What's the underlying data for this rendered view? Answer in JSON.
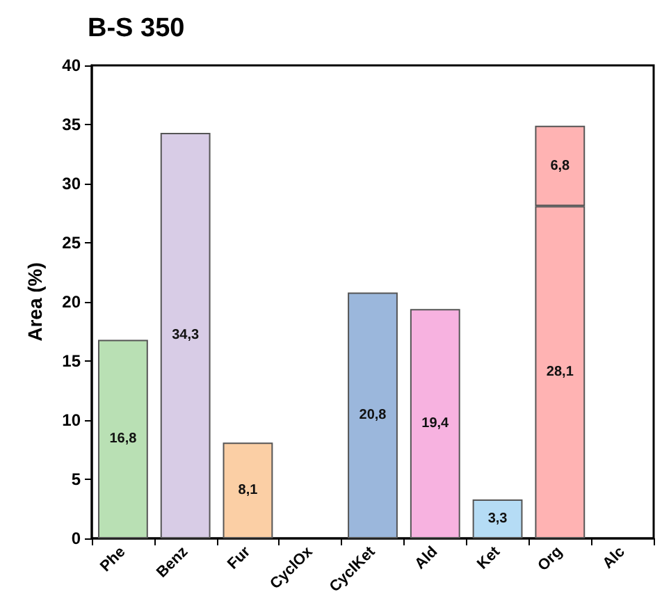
{
  "chart_data": {
    "type": "bar",
    "title": "B-S 350",
    "ylabel": "Area (%)",
    "categories": [
      "Phe",
      "Benz",
      "Fur",
      "CyclOx",
      "CyclKet",
      "Ald",
      "Ket",
      "Org",
      "Alc"
    ],
    "stacked": true,
    "series": [
      {
        "colors": [
          "#b9e0b4",
          "#d8cce6",
          "#fbcfa5",
          "#cccccc",
          "#9bb7dc",
          "#f7b2e0",
          "#b5dcf5",
          "#ffb3b3",
          "#cccccc"
        ],
        "values": [
          16.8,
          34.3,
          8.1,
          null,
          20.8,
          19.4,
          3.3,
          28.1,
          null
        ],
        "value_labels": [
          "16,8",
          "34,3",
          "8,1",
          null,
          "20,8",
          "19,4",
          "3,3",
          "28,1",
          null
        ]
      },
      {
        "color": "#ffb3b3",
        "values": [
          null,
          null,
          null,
          null,
          null,
          null,
          null,
          6.8,
          null
        ],
        "value_labels": [
          null,
          null,
          null,
          null,
          null,
          null,
          null,
          "6,8",
          null
        ]
      }
    ],
    "ylim": [
      0,
      40
    ],
    "yticks": [
      0,
      5,
      10,
      15,
      20,
      25,
      30,
      35,
      40
    ]
  }
}
